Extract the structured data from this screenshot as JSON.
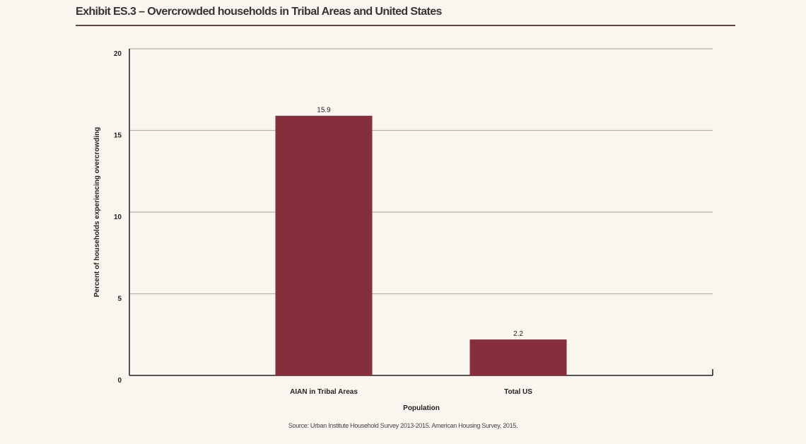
{
  "chart_data": {
    "type": "bar",
    "title": "Exhibit ES.3 – Overcrowded households in Tribal Areas and United States",
    "categories": [
      "AIAN in Tribal Areas",
      "Total US"
    ],
    "values": [
      15.9,
      2.2
    ],
    "data_labels": [
      "15.9",
      "2.2"
    ],
    "xlabel": "Population",
    "ylabel": "Percent of households experiencing overcrowding",
    "ylim": [
      0,
      20
    ],
    "yticks": [
      0,
      5,
      10,
      15,
      20
    ],
    "ytick_labels": [
      "0",
      "5",
      "10",
      "15",
      "20"
    ],
    "grid": true,
    "legend": "none",
    "bar_color": "#862f3c",
    "source": "Source: Urban Institute Household Survey 2013-2015. American Housing Survey, 2015."
  }
}
